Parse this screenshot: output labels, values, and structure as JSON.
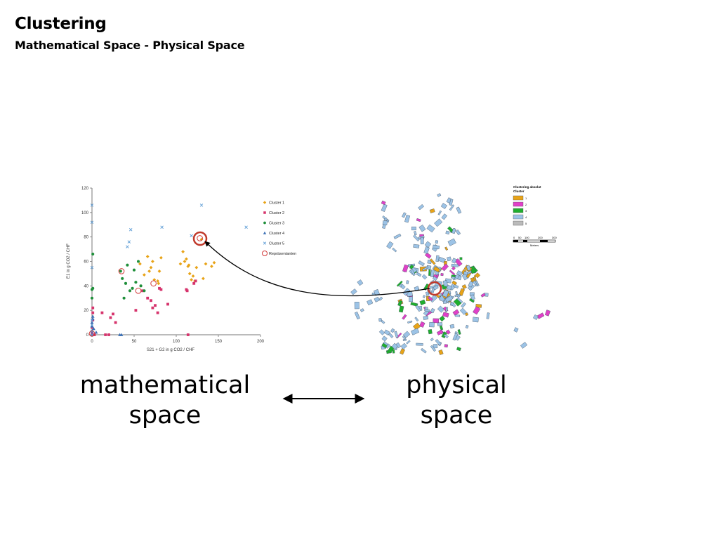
{
  "slide": {
    "title": "Clustering",
    "subtitle": "Mathematical Space - Physical Space",
    "caption_left_line1": "mathematical",
    "caption_left_line2": "space",
    "caption_right_line1": "physical",
    "caption_right_line2": "space"
  },
  "colors": {
    "cluster1": "#e8a317",
    "cluster2": "#d6336c",
    "cluster3": "#1f8f3a",
    "cluster4": "#3a6fb5",
    "cluster5": "#5b9bd5",
    "representative": "#d33a3a",
    "highlight": "#c0392b",
    "map_building": "#9cc3e6"
  },
  "chart_data": {
    "type": "scatter",
    "xlabel": "S21 + G2 in g CO2 / CHF",
    "ylabel": "E1 in g CO2 / CHF",
    "xlim": [
      0,
      200
    ],
    "ylim": [
      0,
      120
    ],
    "xticks": [
      "0",
      "50",
      "100",
      "150",
      "200"
    ],
    "yticks": [
      "0",
      "20",
      "40",
      "60",
      "80",
      "100",
      "120"
    ],
    "legend_position": "right",
    "series": [
      {
        "name": "Cluster 1",
        "marker": "diamond",
        "color": "#e8a317",
        "points": [
          [
            57,
            58
          ],
          [
            62,
            49
          ],
          [
            66,
            64
          ],
          [
            68,
            52
          ],
          [
            70,
            55
          ],
          [
            72,
            60
          ],
          [
            74,
            45
          ],
          [
            78,
            44
          ],
          [
            79,
            42
          ],
          [
            80,
            52
          ],
          [
            82,
            63
          ],
          [
            105,
            58
          ],
          [
            108,
            68
          ],
          [
            110,
            60
          ],
          [
            112,
            62
          ],
          [
            114,
            56
          ],
          [
            115,
            57
          ],
          [
            116,
            50
          ],
          [
            118,
            45
          ],
          [
            120,
            48
          ],
          [
            122,
            44
          ],
          [
            124,
            55
          ],
          [
            130,
            78
          ],
          [
            132,
            46
          ],
          [
            135,
            58
          ],
          [
            142,
            56
          ],
          [
            145,
            59
          ]
        ]
      },
      {
        "name": "Cluster 2",
        "marker": "square",
        "color": "#d6336c",
        "points": [
          [
            0,
            0
          ],
          [
            0,
            2
          ],
          [
            0,
            6
          ],
          [
            1,
            12
          ],
          [
            1,
            18
          ],
          [
            1,
            22
          ],
          [
            2,
            0
          ],
          [
            3,
            0
          ],
          [
            12,
            18
          ],
          [
            16,
            0
          ],
          [
            20,
            0
          ],
          [
            22,
            14
          ],
          [
            25,
            17
          ],
          [
            28,
            10
          ],
          [
            52,
            20
          ],
          [
            60,
            36
          ],
          [
            66,
            30
          ],
          [
            70,
            28
          ],
          [
            72,
            22
          ],
          [
            75,
            24
          ],
          [
            78,
            18
          ],
          [
            80,
            38
          ],
          [
            82,
            37
          ],
          [
            90,
            25
          ],
          [
            112,
            37
          ],
          [
            113,
            36
          ],
          [
            114,
            0
          ],
          [
            121,
            42
          ],
          [
            123,
            44
          ]
        ]
      },
      {
        "name": "Cluster 3",
        "marker": "circle",
        "color": "#1f8f3a",
        "points": [
          [
            0,
            30
          ],
          [
            0,
            37
          ],
          [
            1,
            38
          ],
          [
            1,
            66
          ],
          [
            34,
            52
          ],
          [
            36,
            46
          ],
          [
            40,
            42
          ],
          [
            42,
            57
          ],
          [
            45,
            36
          ],
          [
            48,
            38
          ],
          [
            50,
            53
          ],
          [
            52,
            43
          ],
          [
            55,
            60
          ],
          [
            58,
            40
          ],
          [
            62,
            36
          ],
          [
            38,
            30
          ]
        ]
      },
      {
        "name": "Cluster 4",
        "marker": "triangle",
        "color": "#3a6fb5",
        "points": [
          [
            0,
            0
          ],
          [
            0,
            3
          ],
          [
            0,
            7
          ],
          [
            0,
            10
          ],
          [
            1,
            13
          ],
          [
            1,
            15
          ],
          [
            2,
            5
          ],
          [
            5,
            2
          ],
          [
            33,
            0
          ],
          [
            35,
            0
          ]
        ]
      },
      {
        "name": "Cluster 5",
        "marker": "x",
        "color": "#5b9bd5",
        "points": [
          [
            0,
            0
          ],
          [
            0,
            3
          ],
          [
            0,
            8
          ],
          [
            0,
            12
          ],
          [
            0,
            55
          ],
          [
            0,
            92
          ],
          [
            0,
            106
          ],
          [
            42,
            72
          ],
          [
            44,
            76
          ],
          [
            46,
            86
          ],
          [
            83,
            88
          ],
          [
            118,
            81
          ],
          [
            130,
            106
          ],
          [
            183,
            88
          ]
        ]
      },
      {
        "name": "Repräsentanten",
        "marker": "ring",
        "color": "#d33a3a",
        "points": [
          [
            0,
            1
          ],
          [
            35,
            52
          ],
          [
            55,
            36
          ],
          [
            73,
            42
          ],
          [
            128,
            79
          ]
        ]
      }
    ],
    "highlight_point": [
      128,
      79
    ]
  }
}
